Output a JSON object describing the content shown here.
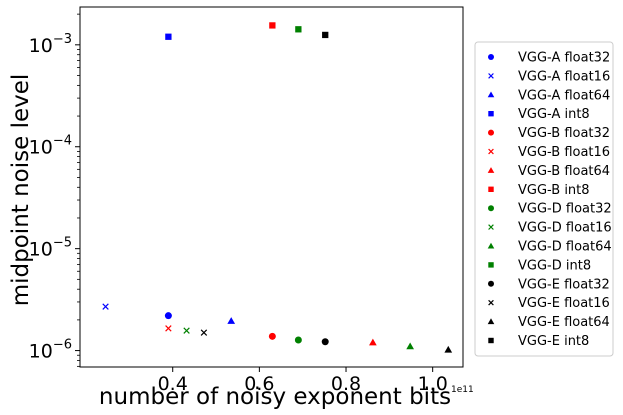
{
  "chart_data": {
    "type": "scatter",
    "xlabel": "number of noisy exponent bits",
    "ylabel": "midpoint noise level",
    "x_offset_label": "1e11",
    "x_scale_factor": 100000000000.0,
    "xlim": [
      0.186,
      1.07
    ],
    "ylim": [
      6.9e-07,
      0.00235
    ],
    "y_scale": "log",
    "x_ticks": [
      0.4,
      0.6,
      0.8,
      1.0
    ],
    "y_ticks": [
      {
        "value": 1e-06,
        "base": "10",
        "exp": "−6"
      },
      {
        "value": 1e-05,
        "base": "10",
        "exp": "−5"
      },
      {
        "value": 0.0001,
        "base": "10",
        "exp": "−4"
      },
      {
        "value": 0.001,
        "base": "10",
        "exp": "−3"
      }
    ],
    "grid": false,
    "legend_position": "outside-right",
    "series": [
      {
        "name": "VGG-A float32",
        "color": "#0000ff",
        "marker": "circle",
        "x": [
          0.39
        ],
        "y": [
          2.2e-06
        ]
      },
      {
        "name": "VGG-A float16",
        "color": "#0000ff",
        "marker": "x",
        "x": [
          0.245
        ],
        "y": [
          2.7e-06
        ]
      },
      {
        "name": "VGG-A float64",
        "color": "#0000ff",
        "marker": "triangle",
        "x": [
          0.535
        ],
        "y": [
          1.95e-06
        ]
      },
      {
        "name": "VGG-A int8",
        "color": "#0000ff",
        "marker": "square",
        "x": [
          0.39
        ],
        "y": [
          0.0012
        ]
      },
      {
        "name": "VGG-B float32",
        "color": "#ff0000",
        "marker": "circle",
        "x": [
          0.63
        ],
        "y": [
          1.38e-06
        ]
      },
      {
        "name": "VGG-B float16",
        "color": "#ff0000",
        "marker": "x",
        "x": [
          0.39
        ],
        "y": [
          1.65e-06
        ]
      },
      {
        "name": "VGG-B float64",
        "color": "#ff0000",
        "marker": "triangle",
        "x": [
          0.862
        ],
        "y": [
          1.2e-06
        ]
      },
      {
        "name": "VGG-B int8",
        "color": "#ff0000",
        "marker": "square",
        "x": [
          0.63
        ],
        "y": [
          0.00155
        ]
      },
      {
        "name": "VGG-D float32",
        "color": "#008000",
        "marker": "circle",
        "x": [
          0.69
        ],
        "y": [
          1.27e-06
        ]
      },
      {
        "name": "VGG-D float16",
        "color": "#008000",
        "marker": "x",
        "x": [
          0.432
        ],
        "y": [
          1.57e-06
        ]
      },
      {
        "name": "VGG-D float64",
        "color": "#008000",
        "marker": "triangle",
        "x": [
          0.948
        ],
        "y": [
          1.1e-06
        ]
      },
      {
        "name": "VGG-D int8",
        "color": "#008000",
        "marker": "square",
        "x": [
          0.69
        ],
        "y": [
          0.00142
        ]
      },
      {
        "name": "VGG-E float32",
        "color": "#000000",
        "marker": "circle",
        "x": [
          0.752
        ],
        "y": [
          1.22e-06
        ]
      },
      {
        "name": "VGG-E float16",
        "color": "#000000",
        "marker": "x",
        "x": [
          0.472
        ],
        "y": [
          1.5e-06
        ]
      },
      {
        "name": "VGG-E float64",
        "color": "#000000",
        "marker": "triangle",
        "x": [
          1.036
        ],
        "y": [
          1.02e-06
        ]
      },
      {
        "name": "VGG-E int8",
        "color": "#000000",
        "marker": "square",
        "x": [
          0.752
        ],
        "y": [
          0.00125
        ]
      }
    ]
  }
}
